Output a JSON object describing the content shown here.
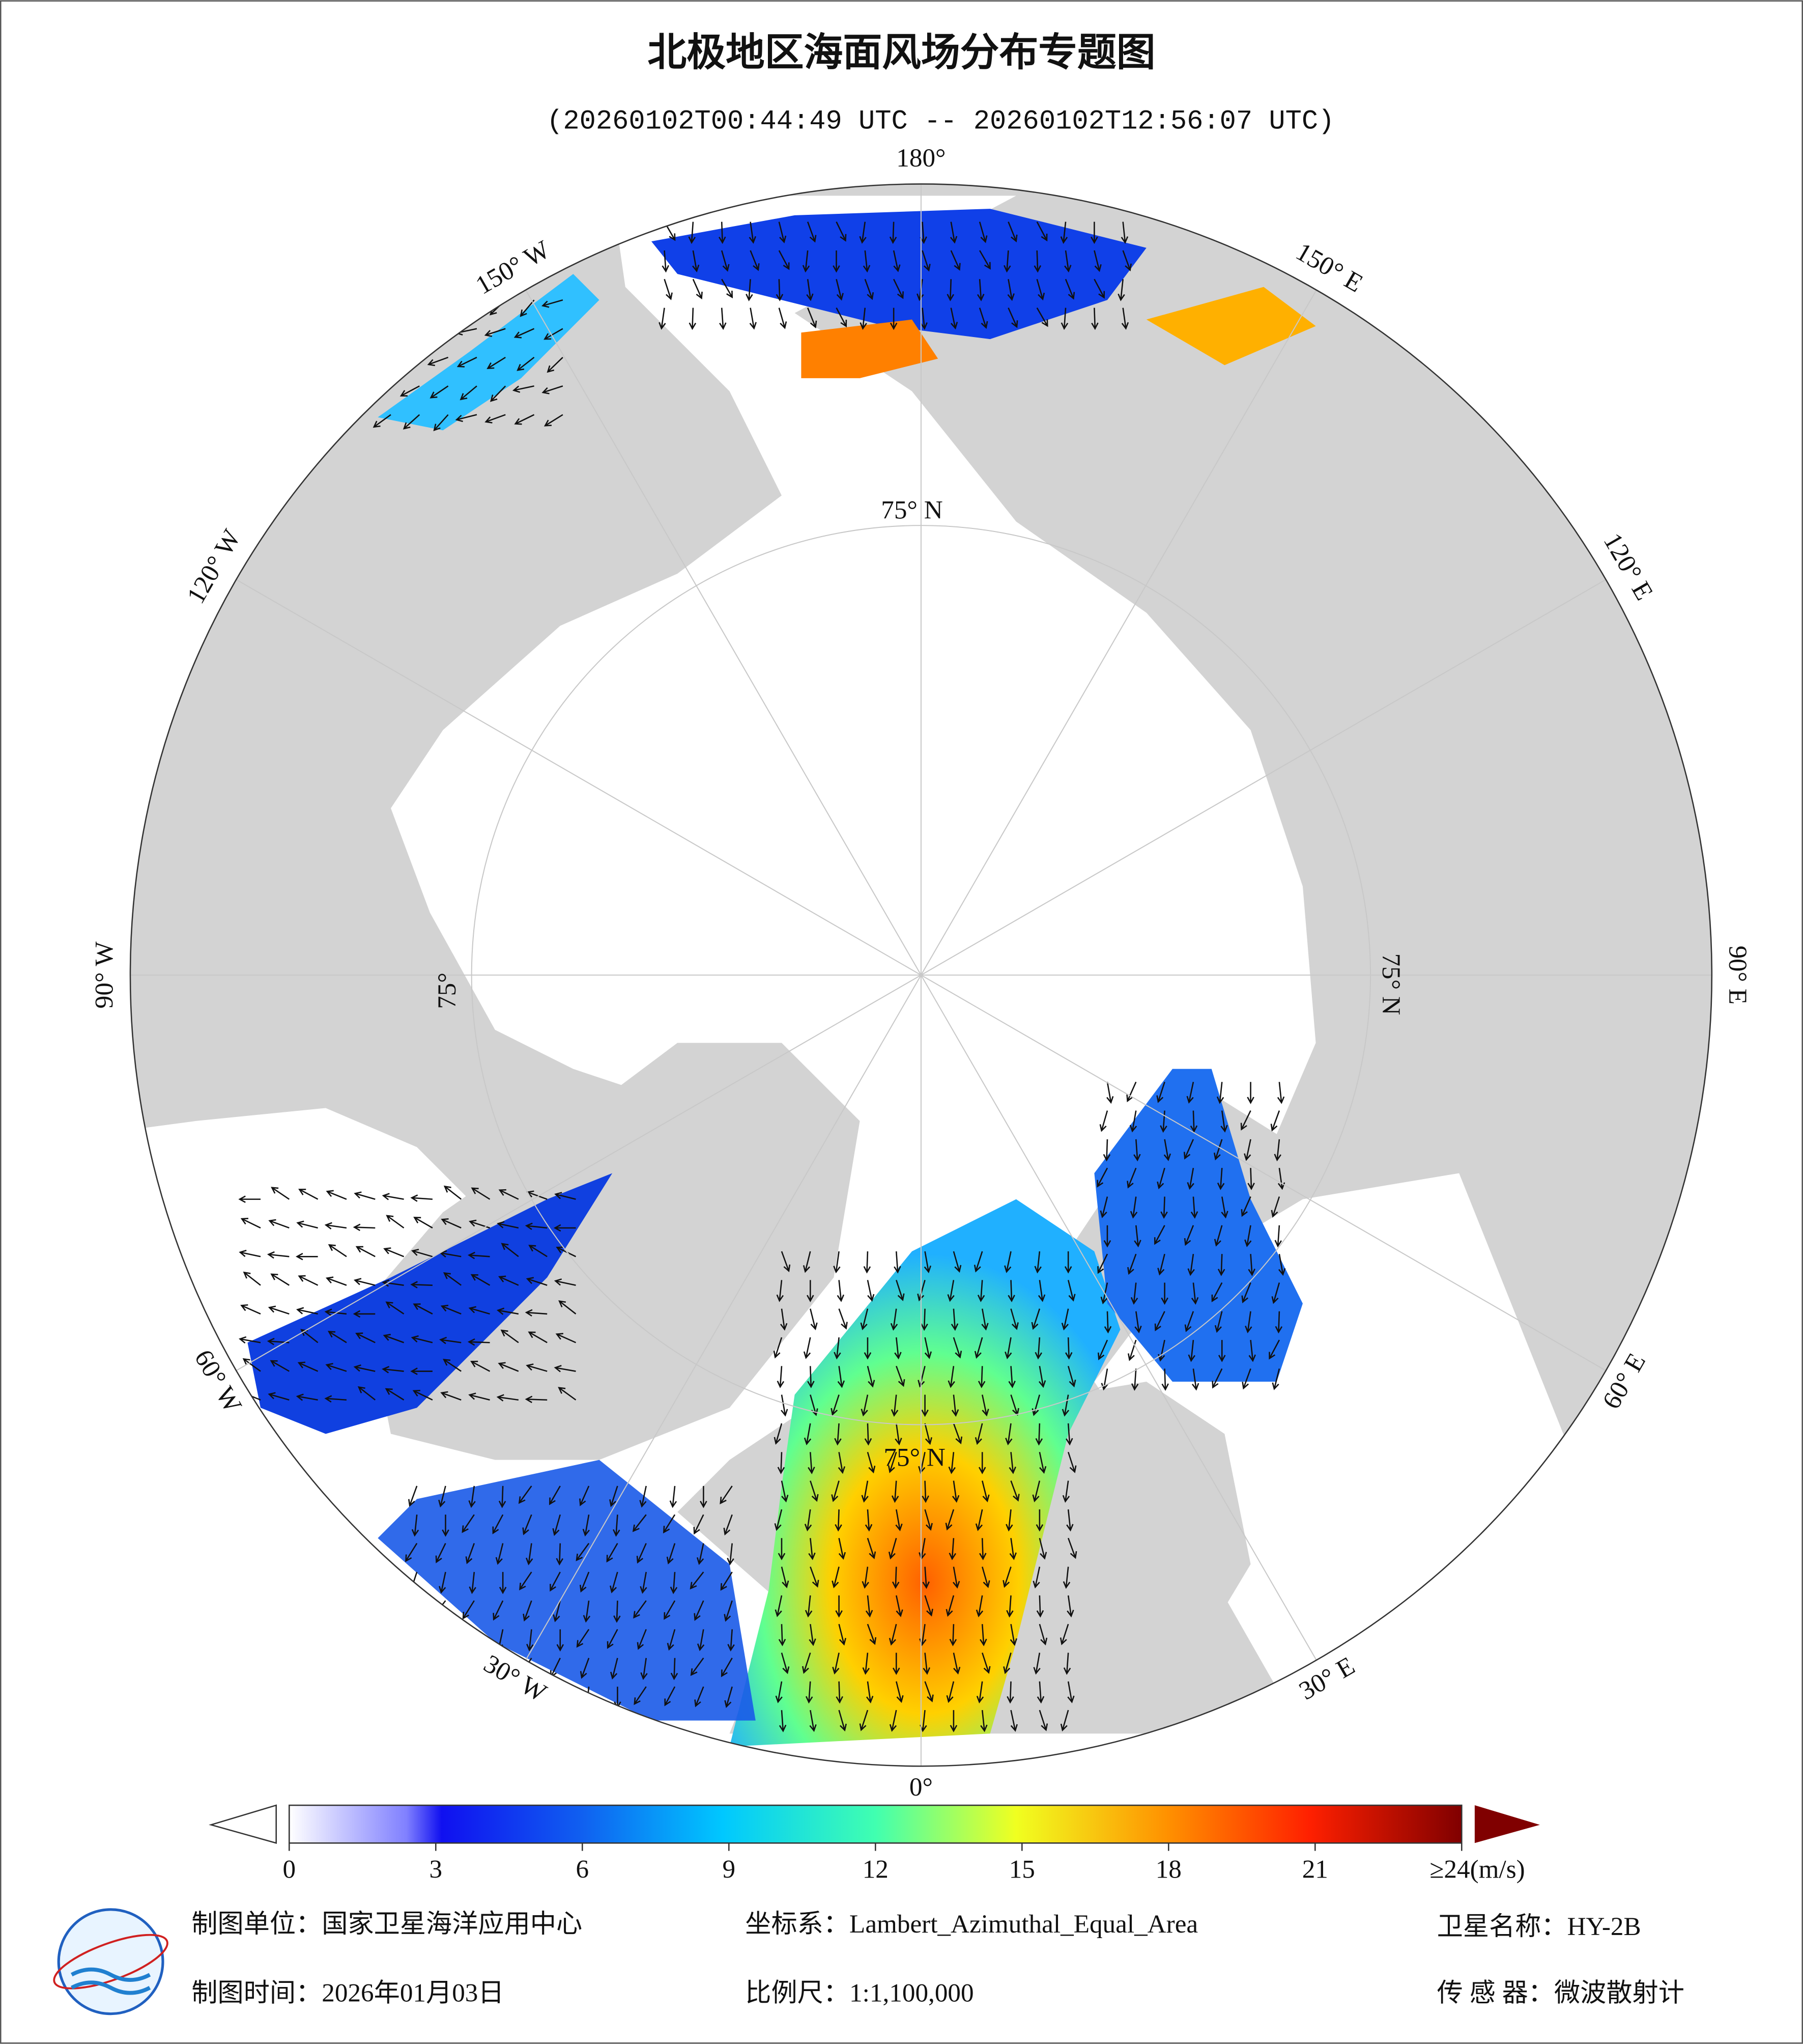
{
  "header": {
    "title": "北极地区海面风场分布专题图",
    "subtitle": "(20260102T00:44:49 UTC -- 20260102T12:56:07 UTC)"
  },
  "map": {
    "longitude_labels": [
      "180°",
      "150° E",
      "120° E",
      "90° E",
      "60° E",
      "30° E",
      "0°",
      "30° W",
      "60° W",
      "90° W",
      "120° W",
      "150° W"
    ],
    "latitude_labels": [
      "75° N",
      "75° N",
      "75°",
      "75° N"
    ]
  },
  "colorbar": {
    "lim": [
      0,
      24
    ],
    "ticks": [
      0,
      3,
      6,
      9,
      12,
      15,
      18,
      21,
      {
        "value": 24,
        "label": "≥24(m/s)"
      }
    ]
  },
  "footer": {
    "unit": "制图单位：国家卫星海洋应用中心",
    "crs": "坐标系：Lambert_Azimuthal_Equal_Area",
    "satellite": "卫星名称：HY-2B",
    "date": "制图时间：2026年01月03日",
    "scale": "比例尺：1:1,100,000",
    "sensor": "传 感 器：微波散射计"
  }
}
